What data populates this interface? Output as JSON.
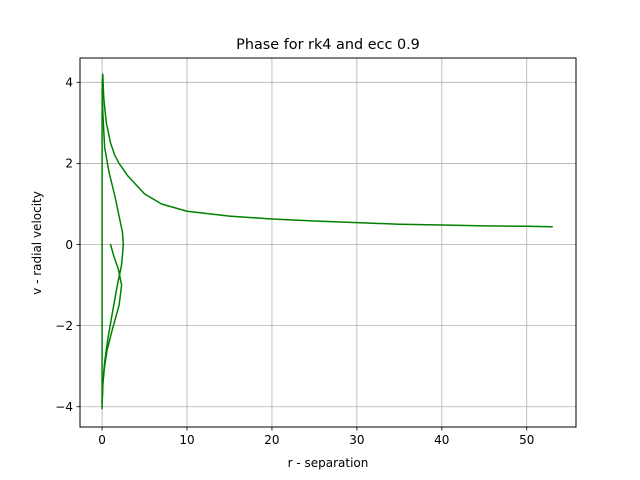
{
  "chart_data": {
    "type": "line",
    "title": "Phase for rk4 and ecc 0.9",
    "xlabel": "r - separation",
    "ylabel": "v - radial velocity",
    "xlim": [
      -2.6,
      55.8
    ],
    "ylim": [
      -4.5,
      4.6
    ],
    "xticks": [
      0,
      10,
      20,
      30,
      40,
      50
    ],
    "yticks": [
      -4,
      -2,
      0,
      2,
      4
    ],
    "xtick_labels": [
      "0",
      "10",
      "20",
      "30",
      "40",
      "50"
    ],
    "ytick_labels": [
      "−4",
      "−2",
      "0",
      "2",
      "4"
    ],
    "grid": true,
    "legend": "none",
    "series": [
      {
        "color": "#008000",
        "points": [
          [
            1.0,
            0.0
          ],
          [
            1.4,
            -0.3
          ],
          [
            1.9,
            -0.6
          ],
          [
            2.3,
            -1.0
          ],
          [
            2.0,
            -1.5
          ],
          [
            1.2,
            -2.1
          ],
          [
            0.6,
            -2.6
          ],
          [
            0.3,
            -3.0
          ],
          [
            0.1,
            -3.4
          ],
          [
            0.03,
            -3.8
          ],
          [
            0.0,
            -4.05
          ],
          [
            0.0,
            -3.0
          ],
          [
            0.0,
            -1.0
          ],
          [
            0.0,
            1.0
          ],
          [
            0.0,
            3.0
          ],
          [
            0.02,
            4.0
          ],
          [
            0.08,
            4.2
          ],
          [
            0.2,
            3.6
          ],
          [
            0.5,
            3.0
          ],
          [
            1.0,
            2.5
          ],
          [
            1.5,
            2.2
          ],
          [
            2.0,
            2.0
          ],
          [
            3.0,
            1.7
          ],
          [
            5.0,
            1.25
          ],
          [
            7.0,
            1.0
          ],
          [
            10.0,
            0.82
          ],
          [
            15.0,
            0.7
          ],
          [
            20.0,
            0.63
          ],
          [
            25.0,
            0.58
          ],
          [
            30.0,
            0.54
          ],
          [
            35.0,
            0.5
          ],
          [
            40.0,
            0.48
          ],
          [
            45.0,
            0.46
          ],
          [
            50.0,
            0.45
          ],
          [
            53.0,
            0.44
          ]
        ]
      },
      {
        "color": "#008000",
        "points": [
          [
            0.0,
            3.8
          ],
          [
            0.1,
            3.2
          ],
          [
            0.3,
            2.4
          ],
          [
            0.8,
            1.8
          ],
          [
            1.5,
            1.2
          ],
          [
            2.0,
            0.7
          ],
          [
            2.4,
            0.3
          ],
          [
            2.5,
            0.0
          ],
          [
            2.3,
            -0.5
          ],
          [
            1.8,
            -1.0
          ],
          [
            1.2,
            -1.7
          ],
          [
            0.7,
            -2.3
          ],
          [
            0.3,
            -2.9
          ],
          [
            0.1,
            -3.4
          ],
          [
            0.0,
            -3.9
          ]
        ]
      }
    ]
  }
}
